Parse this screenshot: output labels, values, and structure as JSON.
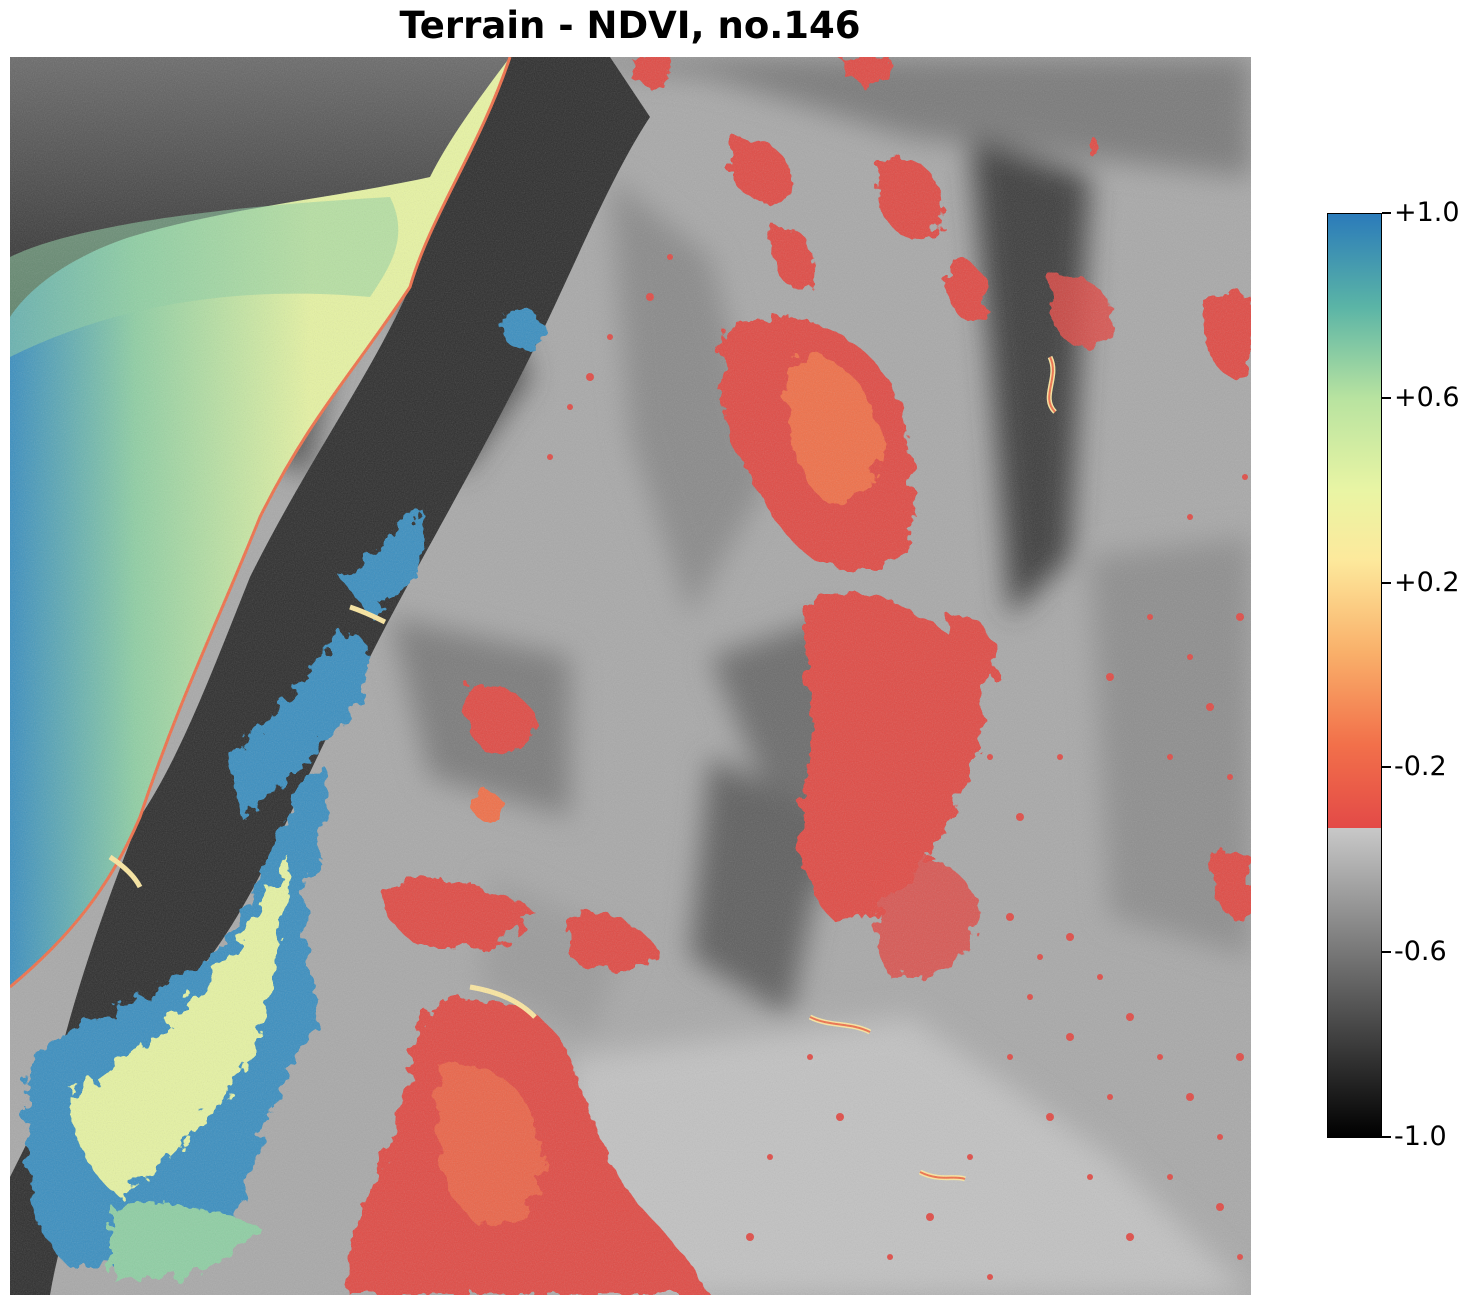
{
  "title": "Terrain - NDVI, no.146",
  "colorbar": {
    "ticks": [
      {
        "value": 1.0,
        "label": "+1.0"
      },
      {
        "value": 0.6,
        "label": "+0.6"
      },
      {
        "value": 0.2,
        "label": "+0.2"
      },
      {
        "value": -0.2,
        "label": "-0.2"
      },
      {
        "value": -0.6,
        "label": "-0.6"
      },
      {
        "value": -1.0,
        "label": "-1.0"
      }
    ],
    "range": [
      -1.0,
      1.0
    ],
    "threshold": -0.33,
    "colormap_above_threshold": "Spectral",
    "colormap_below_threshold": "gray",
    "stops": [
      {
        "value": 1.0,
        "color": "#2b7bba"
      },
      {
        "value": 0.8,
        "color": "#5ab4a6"
      },
      {
        "value": 0.6,
        "color": "#b8e3a0"
      },
      {
        "value": 0.4,
        "color": "#e9f5a4"
      },
      {
        "value": 0.25,
        "color": "#fde99c"
      },
      {
        "value": 0.05,
        "color": "#f9b06a"
      },
      {
        "value": -0.15,
        "color": "#f2704a"
      },
      {
        "value": -0.33,
        "color": "#e34a47"
      },
      {
        "value": -0.331,
        "color": "#c8c8c8"
      },
      {
        "value": -0.6,
        "color": "#777777"
      },
      {
        "value": -1.0,
        "color": "#000000"
      }
    ]
  },
  "map": {
    "background_color": "#a9a9a9",
    "colors": {
      "water_light": "#e6f3a3",
      "water_mid": "#8fcfa4",
      "water_deep": "#3b8fc0",
      "land_dark": "#2a2a2a",
      "land_mid": "#6e6e6e",
      "land_light": "#c4c4c4",
      "patch_red": "#e04b45",
      "patch_orange": "#f0704a",
      "river_yellow": "#fbe7a0"
    }
  }
}
